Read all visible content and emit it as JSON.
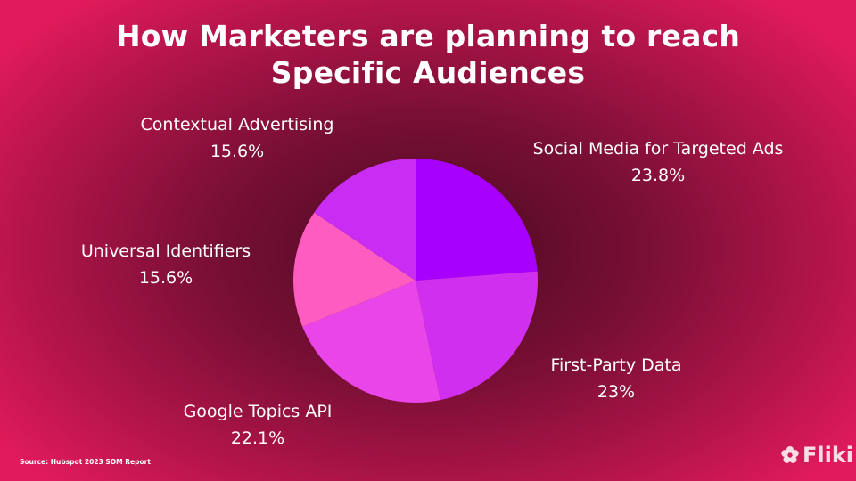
{
  "title": {
    "line1": "How Marketers are planning to reach",
    "line2": "Specific Audiences"
  },
  "chart_data": {
    "type": "pie",
    "slices": [
      {
        "label": "Social Media for Targeted Ads",
        "value": 23.8,
        "value_text": "23.8%",
        "color": "#a800ff"
      },
      {
        "label": "First-Party Data",
        "value": 23,
        "value_text": "23%",
        "color": "#d12ff0"
      },
      {
        "label": "Google Topics API",
        "value": 22.1,
        "value_text": "22.1%",
        "color": "#e945e8"
      },
      {
        "label": "Universal Identifiers",
        "value": 15.6,
        "value_text": "15.6%",
        "color": "#ff5cc2"
      },
      {
        "label": "Contextual Advertising",
        "value": 15.6,
        "value_text": "15.6%",
        "color": "#c92cf2"
      }
    ]
  },
  "footer": {
    "source": "Source: Hubspot  2023 SOM Report",
    "brand": "Fliki",
    "brand_icon": "gear-flower-icon"
  }
}
